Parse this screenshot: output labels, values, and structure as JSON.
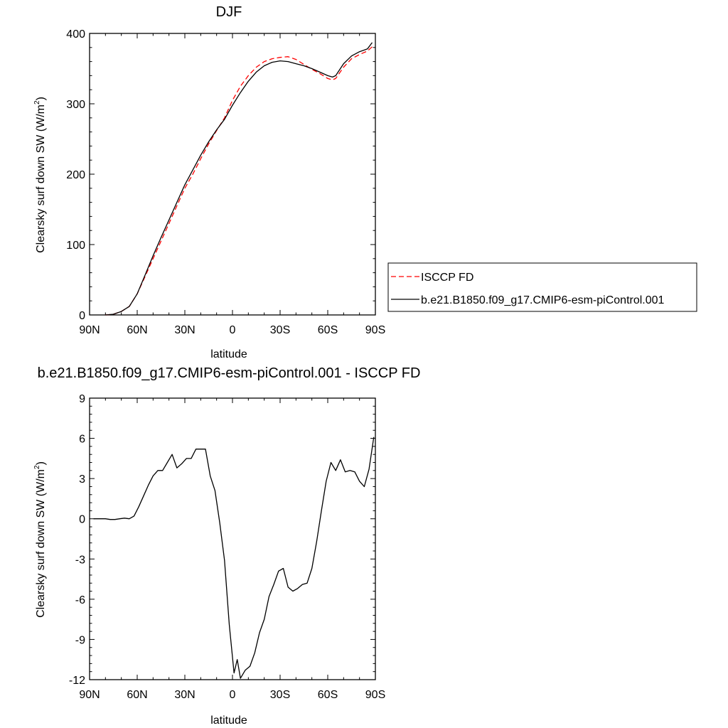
{
  "chart_data": [
    {
      "type": "line",
      "title": "DJF",
      "xlabel": "latitude",
      "ylabel": "Clearsky surf down SW (W/m",
      "ylabel_sup": "2",
      "ylabel_end": ")",
      "xlim": [
        90,
        -90
      ],
      "ylim": [
        0,
        400
      ],
      "xticks": [
        90,
        60,
        30,
        0,
        -30,
        -60,
        -90
      ],
      "xtick_labels": [
        "90N",
        "60N",
        "30N",
        "0",
        "30S",
        "60S",
        "90S"
      ],
      "yticks": [
        0,
        100,
        200,
        300,
        400
      ],
      "ytick_labels": [
        "0",
        "100",
        "200",
        "300",
        "400"
      ],
      "grid": false,
      "legend_position": "right",
      "series": [
        {
          "name": "ISCCP FD",
          "color": "#ff0000",
          "dash": "dashed",
          "x": [
            80,
            75,
            70,
            65,
            60,
            55,
            50,
            45,
            40,
            35,
            30,
            25,
            20,
            15,
            10,
            5,
            0,
            -5,
            -10,
            -15,
            -20,
            -25,
            -30,
            -35,
            -40,
            -45,
            -50,
            -55,
            -60,
            -63,
            -65,
            -70,
            -75,
            -80,
            -85,
            -88
          ],
          "y": [
            0,
            1,
            5,
            12,
            30,
            55,
            80,
            105,
            130,
            155,
            180,
            200,
            222,
            243,
            262,
            280,
            305,
            325,
            340,
            352,
            360,
            364,
            366,
            367,
            363,
            356,
            349,
            343,
            336,
            334,
            336,
            352,
            364,
            370,
            375,
            381
          ]
        },
        {
          "name": "b.e21.B1850.f09_g17.CMIP6-esm-piControl.001",
          "color": "#000000",
          "dash": "solid",
          "x": [
            80,
            75,
            70,
            65,
            60,
            55,
            50,
            45,
            40,
            35,
            30,
            25,
            20,
            15,
            10,
            5,
            0,
            -5,
            -10,
            -15,
            -20,
            -25,
            -30,
            -35,
            -40,
            -45,
            -50,
            -55,
            -60,
            -63,
            -65,
            -70,
            -75,
            -80,
            -85,
            -88
          ],
          "y": [
            0,
            1,
            5,
            12,
            30,
            57,
            84,
            110,
            135,
            160,
            185,
            206,
            227,
            246,
            263,
            278,
            298,
            316,
            332,
            345,
            354,
            359,
            361,
            360,
            357,
            354,
            350,
            345,
            340,
            338,
            340,
            357,
            368,
            374,
            378,
            387
          ]
        }
      ]
    },
    {
      "type": "line",
      "title": "b.e21.B1850.f09_g17.CMIP6-esm-piControl.001 - ISCCP FD",
      "xlabel": "latitude",
      "ylabel": "Clearsky surf down SW (W/m",
      "ylabel_sup": "2",
      "ylabel_end": ")",
      "xlim": [
        90,
        -90
      ],
      "ylim": [
        -12,
        9
      ],
      "xticks": [
        90,
        60,
        30,
        0,
        -30,
        -60,
        -90
      ],
      "xtick_labels": [
        "90N",
        "60N",
        "30N",
        "0",
        "30S",
        "60S",
        "90S"
      ],
      "yticks": [
        -12,
        -9,
        -6,
        -3,
        0,
        3,
        6,
        9
      ],
      "ytick_labels": [
        "-12",
        "-9",
        "-6",
        "-3",
        "0",
        "3",
        "6",
        "9"
      ],
      "grid": false,
      "series": [
        {
          "color": "#000000",
          "dash": "solid",
          "x": [
            87.5,
            83,
            80,
            77,
            74,
            71,
            68,
            65,
            62,
            59,
            56,
            53,
            50,
            47,
            44,
            41,
            38,
            35,
            32,
            29,
            26,
            23,
            20,
            17,
            14,
            11,
            8,
            5,
            2,
            -1,
            -3,
            -5,
            -8,
            -11,
            -14,
            -17,
            -20,
            -23,
            -26,
            -29,
            -32,
            -35,
            -38,
            -41,
            -44,
            -47,
            -50,
            -53,
            -56,
            -59,
            -62,
            -65,
            -68,
            -71,
            -74,
            -77,
            -80,
            -83,
            -86,
            -89
          ],
          "y": [
            0,
            0,
            0,
            -0.05,
            -0.05,
            0,
            0.05,
            0,
            0.2,
            0.9,
            1.7,
            2.5,
            3.2,
            3.6,
            3.6,
            4.2,
            4.8,
            3.8,
            4.1,
            4.5,
            4.5,
            5.2,
            5.2,
            5.2,
            3.2,
            2.1,
            -0.3,
            -3.1,
            -7.9,
            -11.5,
            -10.5,
            -11.9,
            -11.3,
            -11.0,
            -10.0,
            -8.5,
            -7.5,
            -5.8,
            -4.9,
            -3.9,
            -3.7,
            -5.1,
            -5.4,
            -5.2,
            -4.9,
            -4.8,
            -3.7,
            -1.7,
            0.6,
            2.8,
            4.2,
            3.6,
            4.4,
            3.5,
            3.6,
            3.5,
            2.8,
            2.4,
            3.7,
            6.1
          ]
        }
      ]
    }
  ]
}
